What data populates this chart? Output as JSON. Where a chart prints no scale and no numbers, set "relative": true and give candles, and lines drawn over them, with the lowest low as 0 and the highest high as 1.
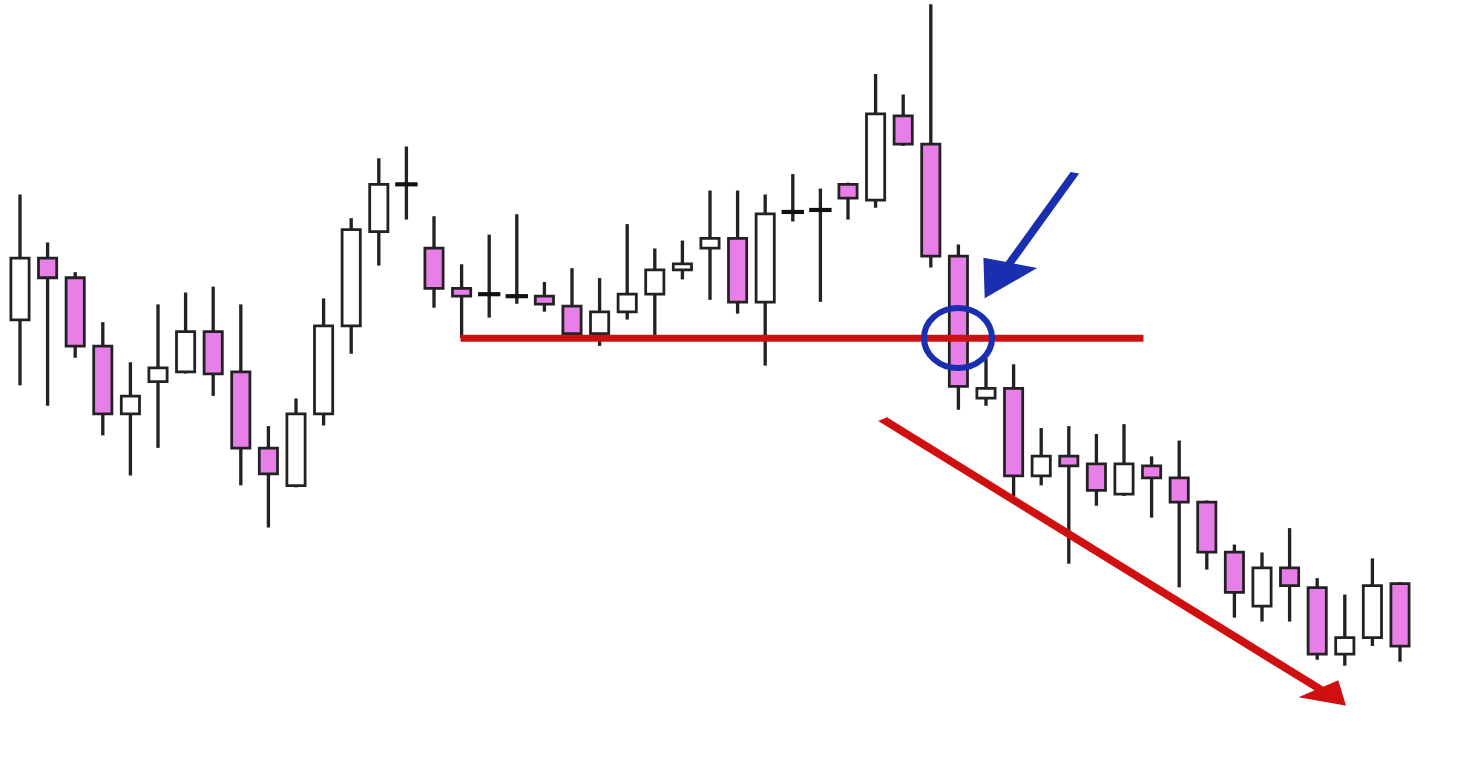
{
  "chart_data": {
    "type": "candlestick",
    "relative": true,
    "categories": [
      null,
      null,
      null,
      null,
      null,
      null,
      null,
      null,
      null,
      null,
      null,
      null,
      null,
      null,
      null,
      null,
      null,
      null,
      null,
      null,
      null,
      null,
      null,
      null,
      null,
      null,
      null,
      null,
      null,
      null,
      null,
      null,
      null,
      null,
      null,
      null,
      null,
      null,
      null,
      null,
      null,
      null,
      null,
      null,
      null,
      null,
      null,
      null,
      null,
      null,
      null
    ],
    "ohlc": [
      [
        0.523,
        0.711,
        0.426,
        0.617
      ],
      [
        0.617,
        0.638,
        0.395,
        0.587
      ],
      [
        0.587,
        0.593,
        0.468,
        0.483
      ],
      [
        0.483,
        0.517,
        0.35,
        0.38
      ],
      [
        0.38,
        0.456,
        0.289,
        0.407
      ],
      [
        0.429,
        0.544,
        0.331,
        0.45
      ],
      [
        0.444,
        0.562,
        0.444,
        0.505
      ],
      [
        0.505,
        0.571,
        0.41,
        0.441
      ],
      [
        0.444,
        0.544,
        0.274,
        0.328
      ],
      [
        0.328,
        0.359,
        0.21,
        0.289
      ],
      [
        0.271,
        0.401,
        0.271,
        0.38
      ],
      [
        0.38,
        0.553,
        0.365,
        0.514
      ],
      [
        0.514,
        0.675,
        0.474,
        0.66
      ],
      [
        0.657,
        0.766,
        0.608,
        0.729
      ],
      [
        0.729,
        0.784,
        0.678,
        0.729
      ],
      [
        0.632,
        0.678,
        0.544,
        0.571
      ],
      [
        0.571,
        0.605,
        0.498,
        0.559
      ],
      [
        0.562,
        0.65,
        0.529,
        0.562
      ],
      [
        0.559,
        0.681,
        0.55,
        0.559
      ],
      [
        0.559,
        0.578,
        0.538,
        0.547
      ],
      [
        0.544,
        0.599,
        0.502,
        0.502
      ],
      [
        0.502,
        0.584,
        0.486,
        0.535
      ],
      [
        0.535,
        0.666,
        0.526,
        0.562
      ],
      [
        0.562,
        0.629,
        0.495,
        0.599
      ],
      [
        0.599,
        0.641,
        0.587,
        0.608
      ],
      [
        0.632,
        0.717,
        0.556,
        0.647
      ],
      [
        0.647,
        0.717,
        0.535,
        0.55
      ],
      [
        0.55,
        0.711,
        0.456,
        0.684
      ],
      [
        0.687,
        0.742,
        0.675,
        0.687
      ],
      [
        0.69,
        0.72,
        0.553,
        0.69
      ],
      [
        0.729,
        0.729,
        0.678,
        0.708
      ],
      [
        0.705,
        0.894,
        0.696,
        0.836
      ],
      [
        0.833,
        0.863,
        0.79,
        0.79
      ],
      [
        0.79,
        1.0,
        0.605,
        0.62
      ],
      [
        0.62,
        0.635,
        0.389,
        0.422
      ],
      [
        0.404,
        0.462,
        0.395,
        0.419
      ],
      [
        0.419,
        0.453,
        0.258,
        0.286
      ],
      [
        0.286,
        0.356,
        0.274,
        0.316
      ],
      [
        0.316,
        0.359,
        0.155,
        0.301
      ],
      [
        0.304,
        0.347,
        0.243,
        0.264
      ],
      [
        0.258,
        0.362,
        0.258,
        0.304
      ],
      [
        0.301,
        0.313,
        0.225,
        0.283
      ],
      [
        0.283,
        0.337,
        0.119,
        0.246
      ],
      [
        0.246,
        0.246,
        0.146,
        0.17
      ],
      [
        0.17,
        0.179,
        0.073,
        0.109
      ],
      [
        0.088,
        0.167,
        0.067,
        0.146
      ],
      [
        0.146,
        0.204,
        0.067,
        0.119
      ],
      [
        0.116,
        0.128,
        0.009,
        0.015
      ],
      [
        0.015,
        0.103,
        0.0,
        0.04
      ],
      [
        0.04,
        0.158,
        0.03,
        0.119
      ],
      [
        0.122,
        0.122,
        0.006,
        0.027
      ]
    ],
    "colors": [
      "#ffffff",
      "#e87fe8",
      "#e87fe8",
      "#e87fe8",
      "#ffffff",
      "#ffffff",
      "#ffffff",
      "#e87fe8",
      "#e87fe8",
      "#e87fe8",
      "#ffffff",
      "#ffffff",
      "#ffffff",
      "#ffffff",
      "#111111",
      "#e87fe8",
      "#e87fe8",
      "#111111",
      "#111111",
      "#e87fe8",
      "#e87fe8",
      "#ffffff",
      "#ffffff",
      "#ffffff",
      "#ffffff",
      "#ffffff",
      "#e87fe8",
      "#ffffff",
      "#111111",
      "#111111",
      "#e87fe8",
      "#ffffff",
      "#e87fe8",
      "#e87fe8",
      "#e87fe8",
      "#ffffff",
      "#e87fe8",
      "#ffffff",
      "#e87fe8",
      "#e87fe8",
      "#ffffff",
      "#e87fe8",
      "#e87fe8",
      "#e87fe8",
      "#e87fe8",
      "#ffffff",
      "#e87fe8",
      "#e87fe8",
      "#ffffff",
      "#ffffff",
      "#e87fe8"
    ],
    "ref_lines": [
      {
        "axis": "y",
        "value": 0.495,
        "color": "#cc1111"
      }
    ]
  }
}
